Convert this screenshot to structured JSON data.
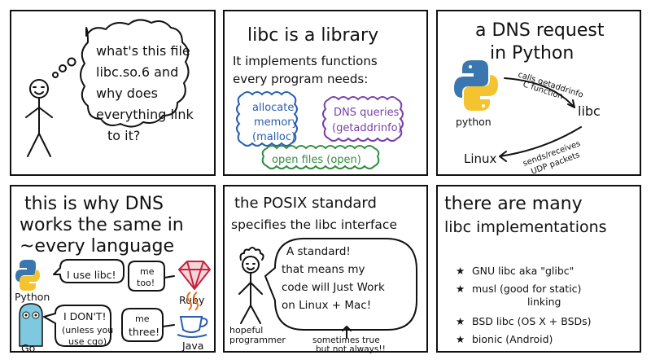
{
  "panel1": {
    "thought": [
      "what's this file",
      "libc.so.6 and",
      "why does",
      "everything link",
      "to it?"
    ]
  },
  "panel2": {
    "title": "libc is a library",
    "intro": [
      "It implements functions",
      "every program needs:"
    ],
    "bubble_allocate": [
      "allocate",
      "memory",
      "(malloc)"
    ],
    "bubble_dns": [
      "DNS queries",
      "(getaddrinfo)"
    ],
    "bubble_files": "open files (open)"
  },
  "panel3": {
    "title": [
      "a DNS request",
      "in Python"
    ],
    "python_label": "python",
    "calls_label": [
      "calls getaddrinfo",
      "C function"
    ],
    "libc_label": "libc",
    "linux_label": "Linux",
    "sends_label": [
      "sends/receives",
      "UDP packets"
    ]
  },
  "panel4": {
    "title": [
      "this is why DNS",
      "works the same in",
      "~every language"
    ],
    "python_speech": "I use libc!",
    "python_label": "Python",
    "ruby_speech": [
      "me",
      "too!"
    ],
    "ruby_label": "Ruby",
    "go_speech": [
      "I DON'T!",
      "(unless you",
      "use cgo)"
    ],
    "go_label": "Go",
    "java_speech": [
      "me",
      "three!"
    ],
    "java_label": "Java"
  },
  "panel5": {
    "title": [
      "the POSIX standard",
      "specifies the libc interface"
    ],
    "speech": [
      "A standard!",
      "that means my",
      "code will Just Work",
      "on Linux + Mac!"
    ],
    "person_label": [
      "hopeful",
      "programmer"
    ],
    "footnote": [
      "sometimes true",
      "but not always!!"
    ]
  },
  "panel6": {
    "title": [
      "there are many",
      "libc implementations"
    ],
    "items": [
      [
        "GNU libc aka \"glibc\""
      ],
      [
        "musl (good for static)",
        "linking"
      ],
      [
        "BSD libc (OS X + BSDs)"
      ],
      [
        "bionic (Android)"
      ]
    ]
  },
  "colors": {
    "blue": "#2a5db0",
    "purple": "#7a3fa8",
    "green": "#2f8f3f",
    "python_blue": "#3a76b0",
    "python_yellow": "#f4c430",
    "ruby_red": "#c8213a",
    "java_orange": "#e8731e",
    "go_blue": "#7fc9e0"
  }
}
